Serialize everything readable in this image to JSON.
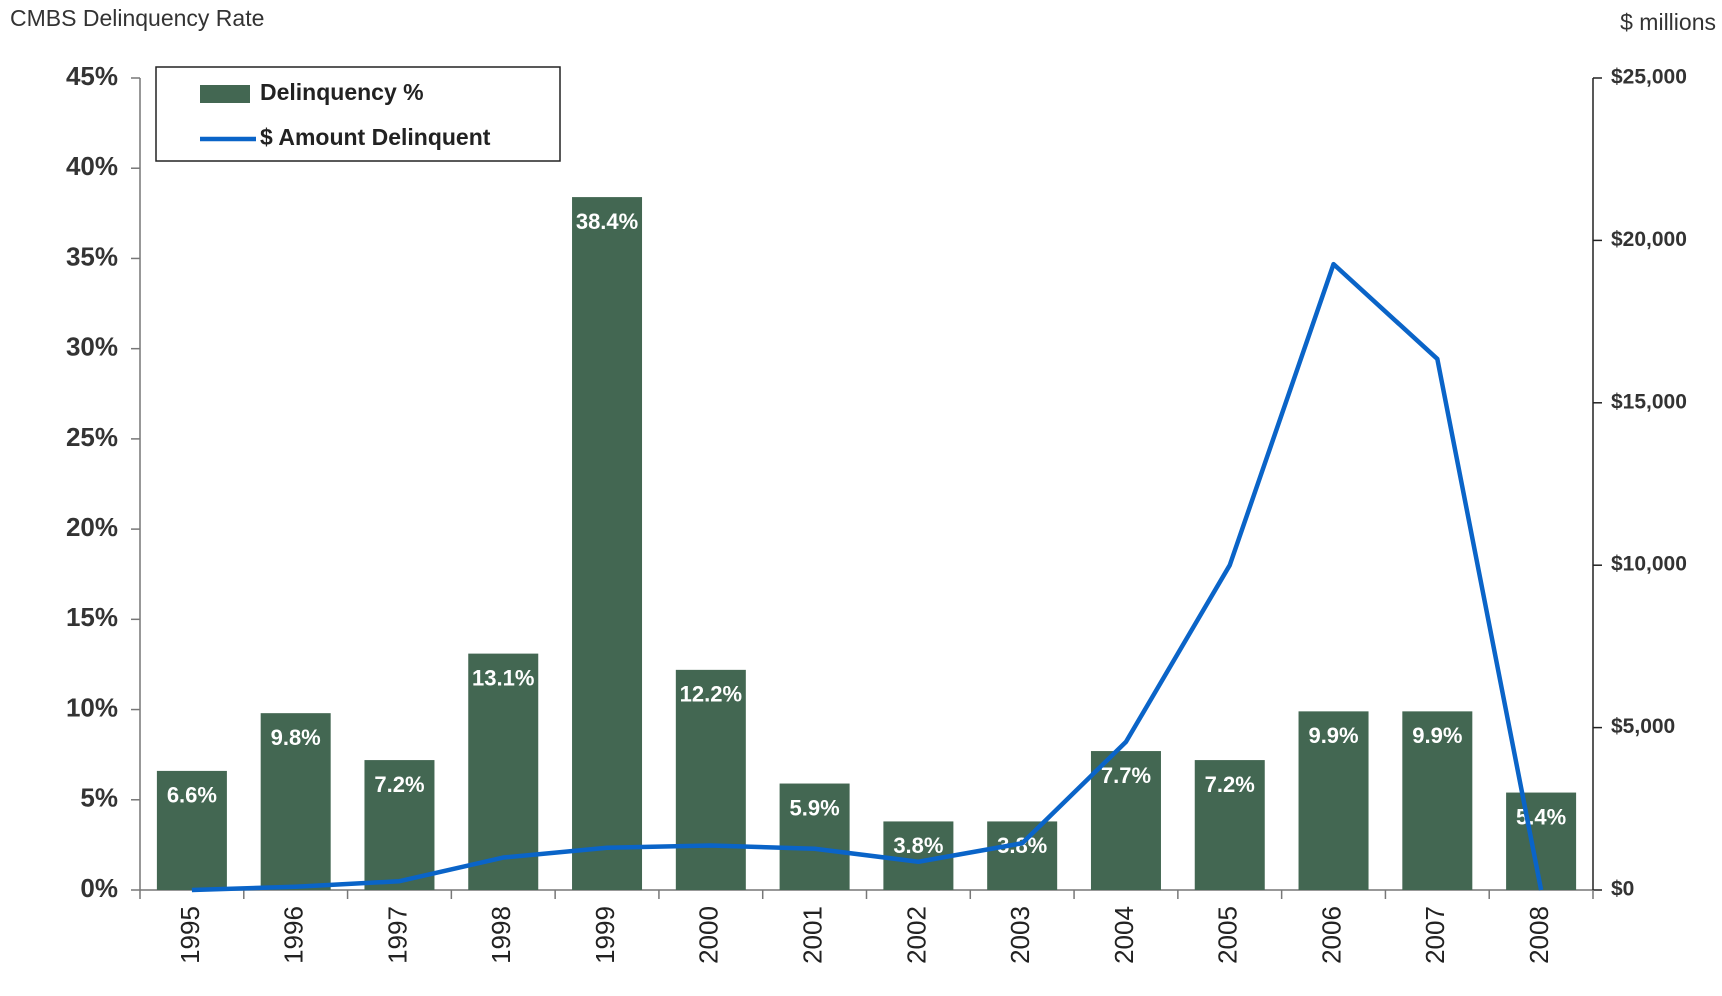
{
  "chart_data": {
    "type": "bar",
    "title": "CMBS Delinquency Rate",
    "y2_title": "$ millions",
    "categories": [
      "1995",
      "1996",
      "1997",
      "1998",
      "1999",
      "2000",
      "2001",
      "2002",
      "2003",
      "2004",
      "2005",
      "2006",
      "2007",
      "2008"
    ],
    "series": [
      {
        "name": "Delinquency %",
        "type": "bar",
        "color": "#436752",
        "values": [
          6.6,
          9.8,
          7.2,
          13.1,
          38.4,
          12.2,
          5.9,
          3.8,
          3.8,
          7.7,
          7.2,
          9.9,
          9.9,
          5.4
        ],
        "value_labels": [
          "6.6%",
          "9.8%",
          "7.2%",
          "13.1%",
          "38.4%",
          "12.2%",
          "5.9%",
          "3.8%",
          "3.8%",
          "7.7%",
          "7.2%",
          "9.9%",
          "9.9%",
          "5.4%"
        ]
      },
      {
        "name": "$ Amount Delinquent",
        "type": "line",
        "axis": "y2",
        "color": "#0a64c8",
        "values": [
          0,
          100,
          270,
          1000,
          1300,
          1370,
          1270,
          870,
          1440,
          4560,
          10000,
          19270,
          16350,
          0
        ]
      }
    ],
    "ylim": [
      0,
      45
    ],
    "yticks": [
      {
        "value": 0,
        "label": "0%"
      },
      {
        "value": 5,
        "label": "5%"
      },
      {
        "value": 10,
        "label": "10%"
      },
      {
        "value": 15,
        "label": "15%"
      },
      {
        "value": 20,
        "label": "20%"
      },
      {
        "value": 25,
        "label": "25%"
      },
      {
        "value": 30,
        "label": "30%"
      },
      {
        "value": 35,
        "label": "35%"
      },
      {
        "value": 40,
        "label": "40%"
      },
      {
        "value": 45,
        "label": "45%"
      }
    ],
    "y2lim": [
      0,
      25000
    ],
    "y2ticks": [
      {
        "value": 0,
        "label": "$0"
      },
      {
        "value": 5000,
        "label": "$5,000"
      },
      {
        "value": 10000,
        "label": "$10,000"
      },
      {
        "value": 15000,
        "label": "$15,000"
      },
      {
        "value": 20000,
        "label": "$20,000"
      },
      {
        "value": 25000,
        "label": "$25,000"
      }
    ],
    "legend": "top-left",
    "grid": false
  }
}
